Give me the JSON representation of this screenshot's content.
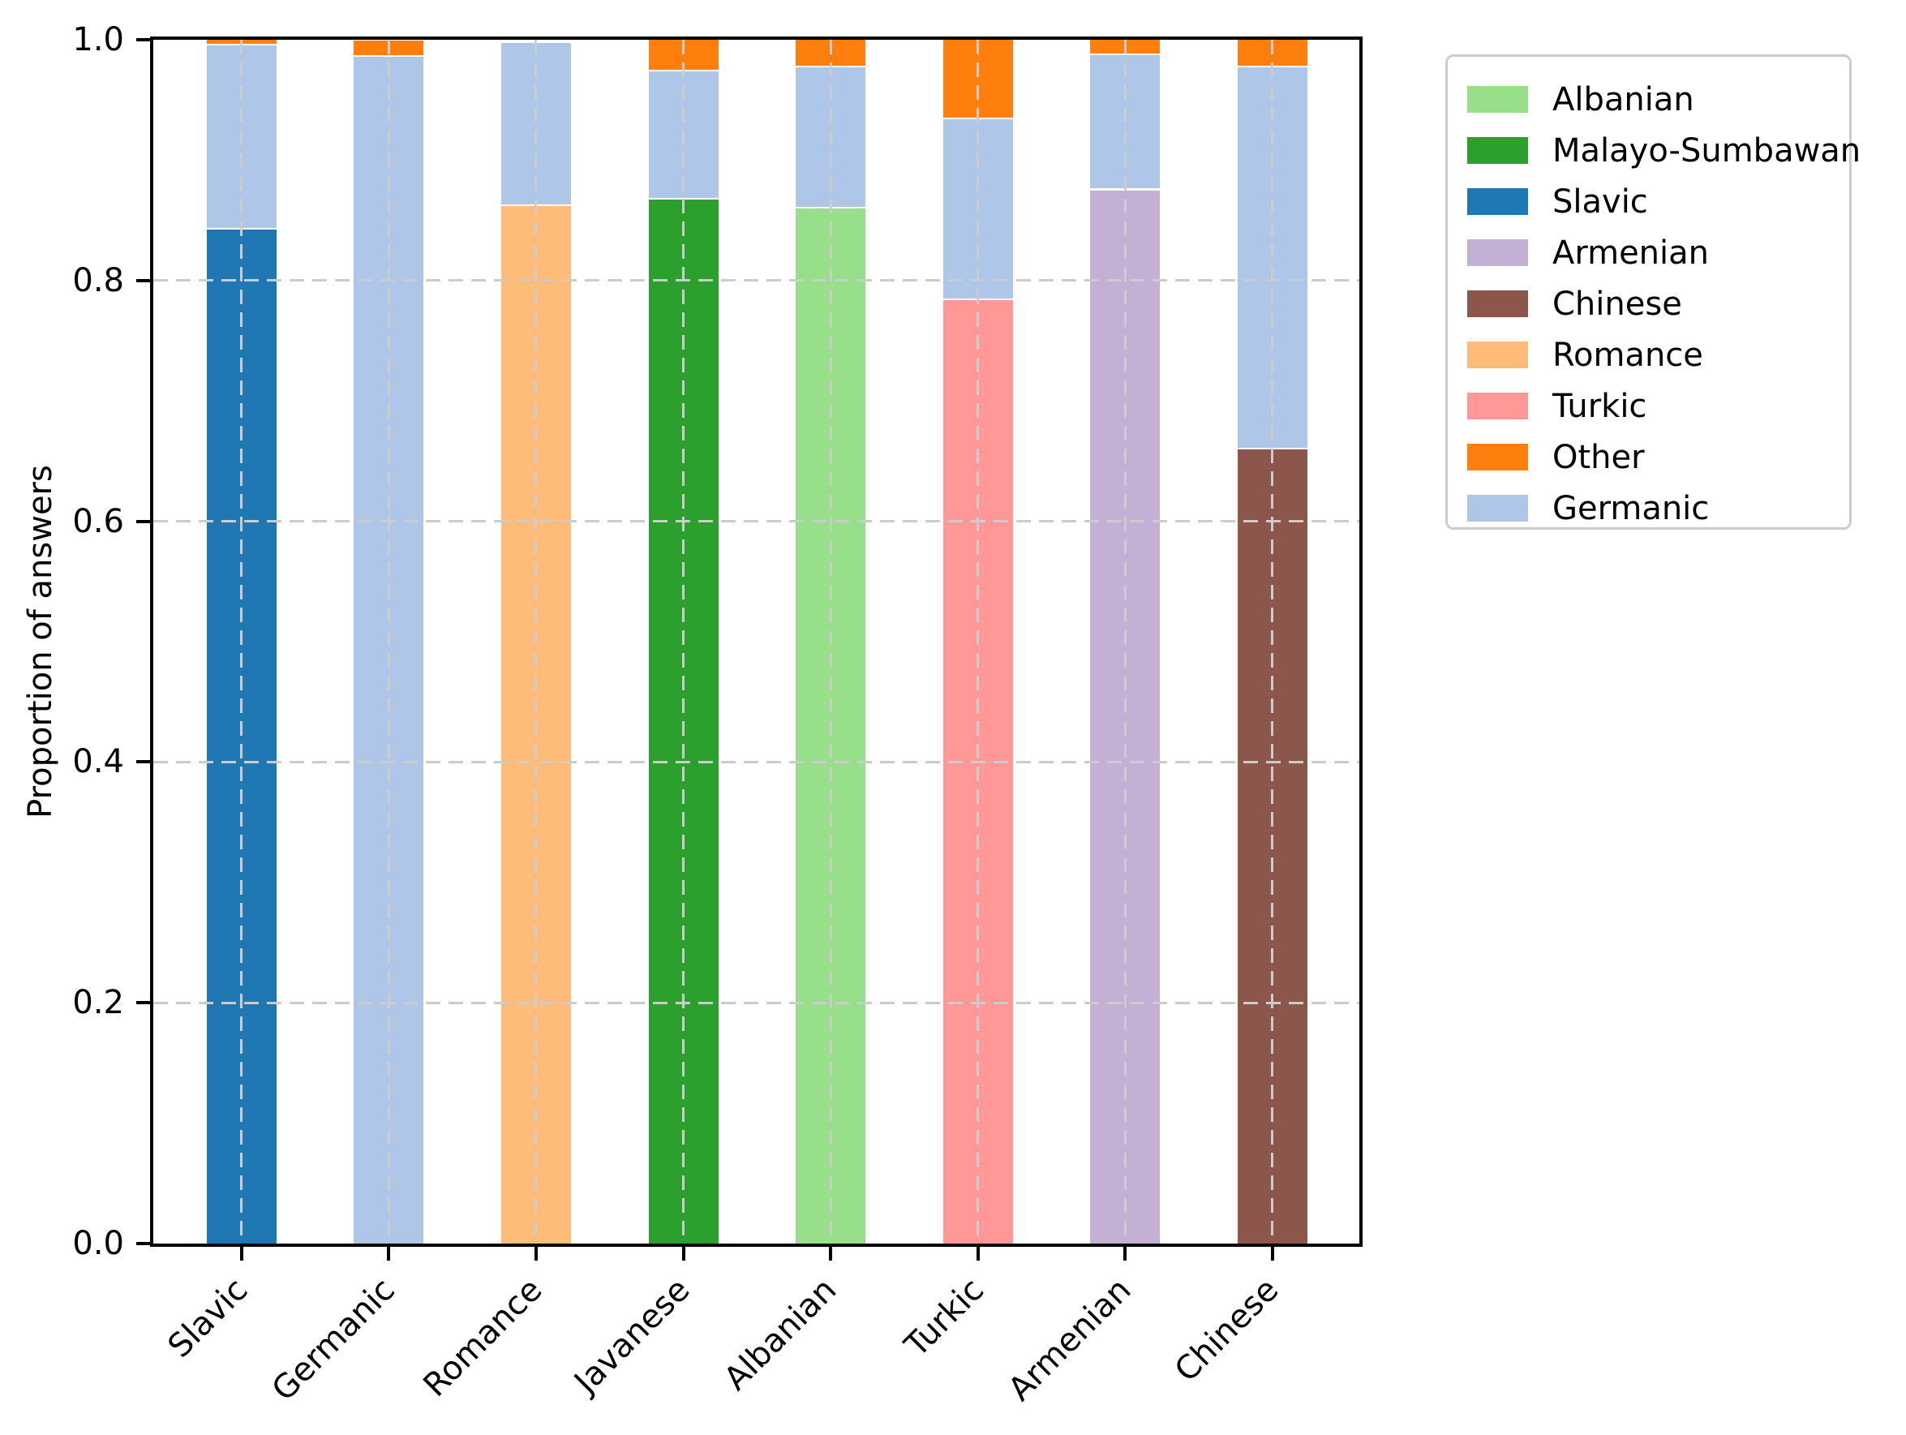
{
  "figure": {
    "background": "#ffffff",
    "grid_color": "#cccccc",
    "spine_color": "#000000",
    "yticks": [
      "0.0",
      "0.2",
      "0.4",
      "0.6",
      "0.8",
      "1.0"
    ]
  },
  "chart_data": {
    "type": "bar",
    "stacked": true,
    "title": "",
    "xlabel": "",
    "ylabel": "Proportion of answers",
    "ylim": [
      0,
      1.0
    ],
    "grid": "dashed, both axes, drawn over bars",
    "legend_position": "upper right, outside plot",
    "categories": [
      "Slavic",
      "Germanic",
      "Romance",
      "Javanese",
      "Albanian",
      "Turkic",
      "Armenian",
      "Chinese"
    ],
    "stack_order": [
      "Albanian",
      "Malayo-Sumbawan",
      "Slavic",
      "Armenian",
      "Chinese",
      "Romance",
      "Turkic",
      "Germanic",
      "Other"
    ],
    "series": [
      {
        "name": "Albanian",
        "color": "#98df8a",
        "values": [
          0,
          0,
          0,
          0,
          0.86,
          0,
          0,
          0
        ]
      },
      {
        "name": "Malayo-Sumbawan",
        "color": "#2ca02c",
        "values": [
          0,
          0,
          0,
          0.867,
          0,
          0,
          0,
          0
        ]
      },
      {
        "name": "Slavic",
        "color": "#1f77b4",
        "values": [
          0.842,
          0,
          0,
          0,
          0,
          0,
          0,
          0
        ]
      },
      {
        "name": "Armenian",
        "color": "#c5b0d5",
        "values": [
          0,
          0,
          0,
          0,
          0,
          0,
          0.875,
          0
        ]
      },
      {
        "name": "Chinese",
        "color": "#8c564b",
        "values": [
          0,
          0,
          0,
          0,
          0,
          0,
          0,
          0.66
        ]
      },
      {
        "name": "Romance",
        "color": "#ffbb78",
        "values": [
          0,
          0,
          0.862,
          0,
          0,
          0,
          0,
          0
        ]
      },
      {
        "name": "Turkic",
        "color": "#ff9896",
        "values": [
          0,
          0,
          0,
          0,
          0,
          0.784,
          0,
          0
        ]
      },
      {
        "name": "Other",
        "color": "#ff7f0e",
        "values": [
          0.005,
          0.013,
          0,
          0.026,
          0.023,
          0.066,
          0.013,
          0.023
        ]
      },
      {
        "name": "Germanic",
        "color": "#aec7e8",
        "values": [
          0.153,
          0.986,
          0.135,
          0.107,
          0.117,
          0.15,
          0.112,
          0.317
        ]
      }
    ]
  }
}
